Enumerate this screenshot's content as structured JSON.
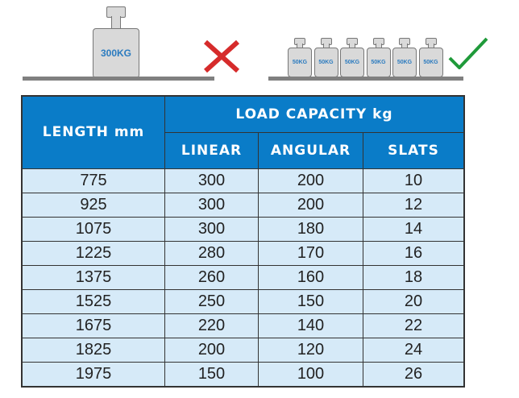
{
  "illustration": {
    "heavy_weight_label": "300KG",
    "light_weight_labels": [
      "50KG",
      "50KG",
      "50KG",
      "50KG",
      "50KG",
      "50KG"
    ],
    "wrong_icon": "red-cross-icon",
    "right_icon": "green-check-icon",
    "colors": {
      "cross": "#d62b2b",
      "check": "#1f9a3a",
      "weight_text": "#2b7bbf"
    }
  },
  "table": {
    "header_length": "LENGTH mm",
    "header_load": "LOAD CAPACITY kg",
    "sub_headers": [
      "LINEAR",
      "ANGULAR",
      "SLATS"
    ],
    "rows": [
      [
        "775",
        "300",
        "200",
        "10"
      ],
      [
        "925",
        "300",
        "200",
        "12"
      ],
      [
        "1075",
        "300",
        "180",
        "14"
      ],
      [
        "1225",
        "280",
        "170",
        "16"
      ],
      [
        "1375",
        "260",
        "160",
        "18"
      ],
      [
        "1525",
        "250",
        "150",
        "20"
      ],
      [
        "1675",
        "220",
        "140",
        "22"
      ],
      [
        "1825",
        "200",
        "120",
        "24"
      ],
      [
        "1975",
        "150",
        "100",
        "26"
      ]
    ],
    "colors": {
      "header": "#0a7cc8",
      "cell": "#d6eaf8"
    }
  }
}
